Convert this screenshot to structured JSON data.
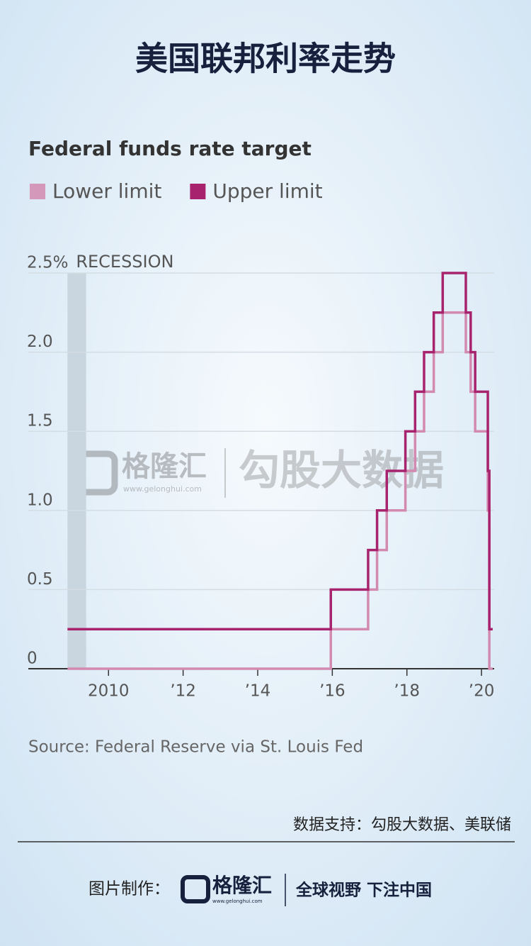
{
  "header": {
    "title": "美国联邦利率走势"
  },
  "chart_data": {
    "type": "line",
    "step": true,
    "title": "Federal funds rate target",
    "x": [
      2008.9,
      2015.96,
      2016.96,
      2017.2,
      2017.46,
      2017.96,
      2018.22,
      2018.46,
      2018.72,
      2018.96,
      2019.58,
      2019.71,
      2019.83,
      2020.17,
      2020.21,
      2020.3
    ],
    "series": [
      {
        "name": "Lower limit",
        "color": "#d28ab0",
        "values": [
          0,
          0.25,
          0.5,
          0.75,
          1.0,
          1.25,
          1.5,
          1.75,
          2.0,
          2.25,
          2.0,
          1.75,
          1.5,
          1.0,
          0,
          0
        ]
      },
      {
        "name": "Upper limit",
        "color": "#a8236e",
        "values": [
          0.25,
          0.5,
          0.75,
          1.0,
          1.25,
          1.5,
          1.75,
          2.0,
          2.25,
          2.5,
          2.25,
          2.0,
          1.75,
          1.25,
          0.25,
          0.25
        ]
      }
    ],
    "recession": {
      "label": "RECESSION",
      "span": [
        2008.9,
        2009.4
      ]
    },
    "xlim": [
      2007.85,
      2020.34
    ],
    "xticks": [
      {
        "value": 2010,
        "label": "2010"
      },
      {
        "value": 2012,
        "label": "’12"
      },
      {
        "value": 2014,
        "label": "’14"
      },
      {
        "value": 2016,
        "label": "’16"
      },
      {
        "value": 2018,
        "label": "’18"
      },
      {
        "value": 2020,
        "label": "’20"
      }
    ],
    "ylim": [
      0,
      2.5
    ],
    "yticks": [
      0,
      0.5,
      {
        "value": 1,
        "label": "1.0"
      },
      1.5,
      {
        "value": 2,
        "label": "2.0"
      },
      {
        "value": 2.5,
        "label": "2.5%"
      }
    ],
    "grid": true,
    "source": "Source: Federal Reserve via St. Louis Fed"
  },
  "watermark": {
    "brand": "格隆汇",
    "url": "www.gelonghui.com",
    "name": "勾股大数据"
  },
  "footer": {
    "credit": "数据支持：勾股大数据、美联储",
    "made_by": "图片制作：",
    "brand": "格隆汇",
    "url": "www.gelonghui.com",
    "slogan": "全球视野 下注中国"
  }
}
